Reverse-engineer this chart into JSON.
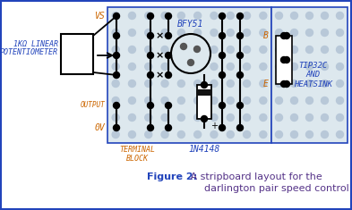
{
  "fig_width": 3.93,
  "fig_height": 2.35,
  "dpi": 100,
  "bg_color": "#ffffff",
  "border_color": "#2244bb",
  "board_color": "#dde8ee",
  "dot_color": "#b8c8d8",
  "black": "#000000",
  "orange": "#cc6600",
  "blue": "#2244bb",
  "purple": "#553388",
  "caption_bold": "Figure 2:",
  "caption_rest": " A stripboard layout for the",
  "caption_line2": "darlington pair speed control",
  "label_vs": "VS",
  "label_output": "OUTPUT",
  "label_0v": "0V",
  "label_potentiometer_1": "1KΩ LINEAR",
  "label_potentiometer_2": "POTENTIOMETER",
  "label_terminal": "TERMINAL\nBLOCK",
  "label_bfy51": "BFY51",
  "label_diode": "1N4148",
  "label_tip32c": "TIP32C\nAND\nHEATSINK",
  "label_b": "B",
  "label_e": "E"
}
